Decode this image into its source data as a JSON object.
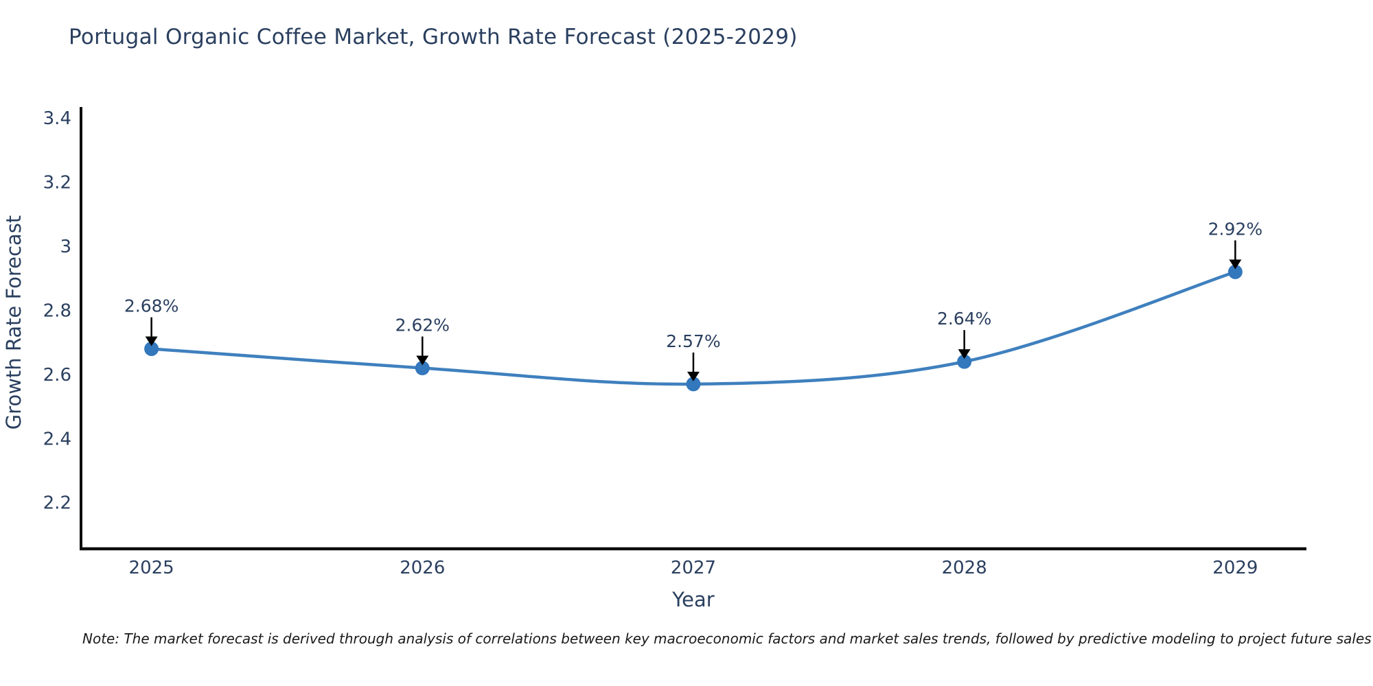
{
  "chart": {
    "colors": {
      "line": "#3f80be",
      "marker": "#3377bc",
      "axis": "#0d0d0d",
      "text": "#2a3f5f",
      "annotation_arrow": "#000000",
      "note_text": "#1a1a1a",
      "background": "#ffffff"
    }
  },
  "chart_data": {
    "type": "line",
    "title": "Portugal Organic Coffee Market, Growth Rate Forecast (2025-2029)",
    "xlabel": "Year",
    "ylabel": "Growth Rate Forecast",
    "x": [
      2025,
      2026,
      2027,
      2028,
      2029
    ],
    "y": [
      2.68,
      2.62,
      2.57,
      2.64,
      2.92
    ],
    "point_labels": [
      "2.68%",
      "2.62%",
      "2.57%",
      "2.64%",
      "2.92%"
    ],
    "xticks": [
      "2025",
      "2026",
      "2027",
      "2028",
      "2029"
    ],
    "xtick_values": [
      2025,
      2026,
      2027,
      2028,
      2029
    ],
    "yticks": [
      "2.2",
      "2.4",
      "2.6",
      "2.8",
      "3",
      "3.2",
      "3.4"
    ],
    "ytick_values": [
      2.2,
      2.4,
      2.6,
      2.8,
      3.0,
      3.2,
      3.4
    ],
    "xlim": [
      2024.74,
      2029.26
    ],
    "ylim": [
      2.056,
      3.426
    ],
    "grid": false,
    "legend": "none",
    "line_shape": "spline",
    "note": "Note: The market forecast is derived through analysis of correlations between key macroeconomic factors and market sales trends, followed by predictive modeling to project future sales"
  }
}
